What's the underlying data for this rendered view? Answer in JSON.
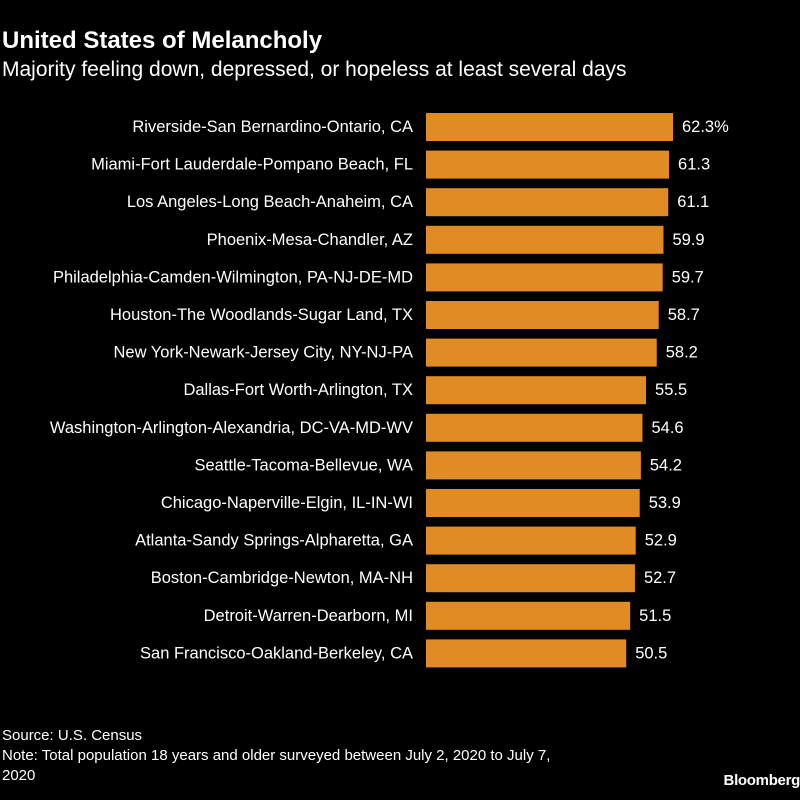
{
  "title": "United States of Melancholy",
  "subtitle": "Majority feeling down, depressed, or hopeless at least several days",
  "source": "Source: U.S. Census",
  "note_line1": "Note: Total population 18 years and older surveyed between July 2, 2020 to July 7,",
  "note_line2": "2020",
  "logo": "Bloomberg",
  "colors": {
    "background": "#000000",
    "bar": "#e08b23",
    "text": "#ffffff"
  },
  "chart_data": {
    "type": "bar",
    "orientation": "horizontal",
    "categories": [
      "Riverside-San Bernardino-Ontario, CA",
      "Miami-Fort Lauderdale-Pompano Beach, FL",
      "Los Angeles-Long Beach-Anaheim, CA",
      "Phoenix-Mesa-Chandler, AZ",
      "Philadelphia-Camden-Wilmington, PA-NJ-DE-MD",
      "Houston-The Woodlands-Sugar Land, TX",
      "New York-Newark-Jersey City, NY-NJ-PA",
      "Dallas-Fort Worth-Arlington, TX",
      "Washington-Arlington-Alexandria, DC-VA-MD-WV",
      "Seattle-Tacoma-Bellevue, WA",
      "Chicago-Naperville-Elgin, IL-IN-WI",
      "Atlanta-Sandy Springs-Alpharetta, GA",
      "Boston-Cambridge-Newton, MA-NH",
      "Detroit-Warren-Dearborn, MI",
      "San Francisco-Oakland-Berkeley, CA"
    ],
    "values": [
      62.3,
      61.3,
      61.1,
      59.9,
      59.7,
      58.7,
      58.2,
      55.5,
      54.6,
      54.2,
      53.9,
      52.9,
      52.7,
      51.5,
      50.5
    ],
    "value_labels": [
      "62.3%",
      "61.3",
      "61.1",
      "59.9",
      "59.7",
      "58.7",
      "58.2",
      "55.5",
      "54.6",
      "54.2",
      "53.9",
      "52.9",
      "52.7",
      "51.5",
      "50.5"
    ],
    "title": "United States of Melancholy",
    "subtitle": "Majority feeling down, depressed, or hopeless at least several days",
    "xlabel": "",
    "ylabel": "",
    "xlim": [
      0,
      62.3
    ],
    "grid": false,
    "legend": "none"
  }
}
